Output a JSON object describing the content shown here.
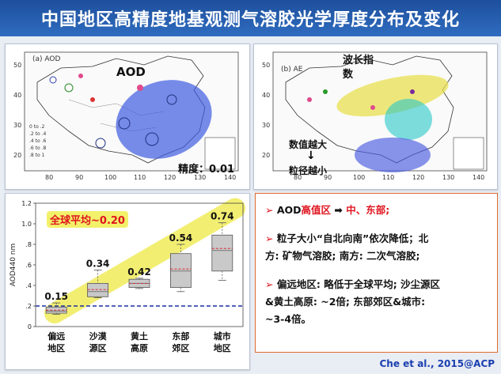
{
  "title": "中国地区高精度地基观测气溶胶光学厚度分布及变化",
  "map_left": {
    "panel_label": "(a) AOD",
    "overlay_label": "AOD",
    "accuracy_label": "精度：0.01",
    "x_ticks": [
      "80",
      "90",
      "100",
      "110",
      "120",
      "130",
      "140"
    ],
    "y_ticks": [
      "50",
      "40",
      "30",
      "20"
    ],
    "legend": [
      "0 to .2",
      ".2 to .4",
      ".4 to .6",
      ".6 to .8",
      ".8 to 1"
    ]
  },
  "map_right": {
    "panel_label": "(b) AE",
    "overlay_label": "波长指数",
    "arrow_top": "数值越大",
    "arrow_bottom": "粒径越小",
    "x_ticks": [
      "80",
      "90",
      "100",
      "110",
      "120",
      "130",
      "140"
    ],
    "y_ticks": [
      "50",
      "40",
      "30",
      "20"
    ]
  },
  "chart_data": {
    "type": "box",
    "ylabel": "AOD440 nm",
    "ylim": [
      0,
      1.2
    ],
    "y_ticks": [
      "0",
      ".2",
      ".4",
      ".6",
      ".8",
      "1.0",
      "1.2"
    ],
    "categories": [
      "偏远地区",
      "沙漠源区",
      "黄土高原",
      "东部郊区",
      "城市地区"
    ],
    "medians": [
      0.15,
      0.34,
      0.42,
      0.54,
      0.74
    ],
    "median_labels": [
      "0.15",
      "0.34",
      "0.42",
      "0.54",
      "0.74"
    ],
    "boxes": [
      {
        "min": 0.12,
        "q1": 0.13,
        "q3": 0.19,
        "max": 0.23,
        "mean": 0.16
      },
      {
        "min": 0.28,
        "q1": 0.29,
        "q3": 0.42,
        "max": 0.55,
        "mean": 0.36
      },
      {
        "min": 0.37,
        "q1": 0.38,
        "q3": 0.46,
        "max": 0.47,
        "mean": 0.42
      },
      {
        "min": 0.34,
        "q1": 0.38,
        "q3": 0.71,
        "max": 0.8,
        "mean": 0.56
      },
      {
        "min": 0.45,
        "q1": 0.54,
        "q3": 0.89,
        "max": 1.01,
        "mean": 0.76
      }
    ],
    "global_mean": 0.2,
    "global_label": "全球平均~0.20"
  },
  "bullets": [
    {
      "prefix": "AOD",
      "red1": "高值区",
      "mid": " ➡ ",
      "red2": "中、东部;"
    },
    {
      "line1": "粒子大小“自北向南”依次降低；北",
      "line2": "方: 矿物气溶胶; 南方: 二次气溶胶;"
    },
    {
      "line1": "偏远地区: 略低于全球平均; 沙尘源区",
      "line2": "&黄土高原: ~2倍; 东部郊区&城市:",
      "line3": "~3-4倍。"
    }
  ],
  "citation": "Che et al., 2015@ACP"
}
